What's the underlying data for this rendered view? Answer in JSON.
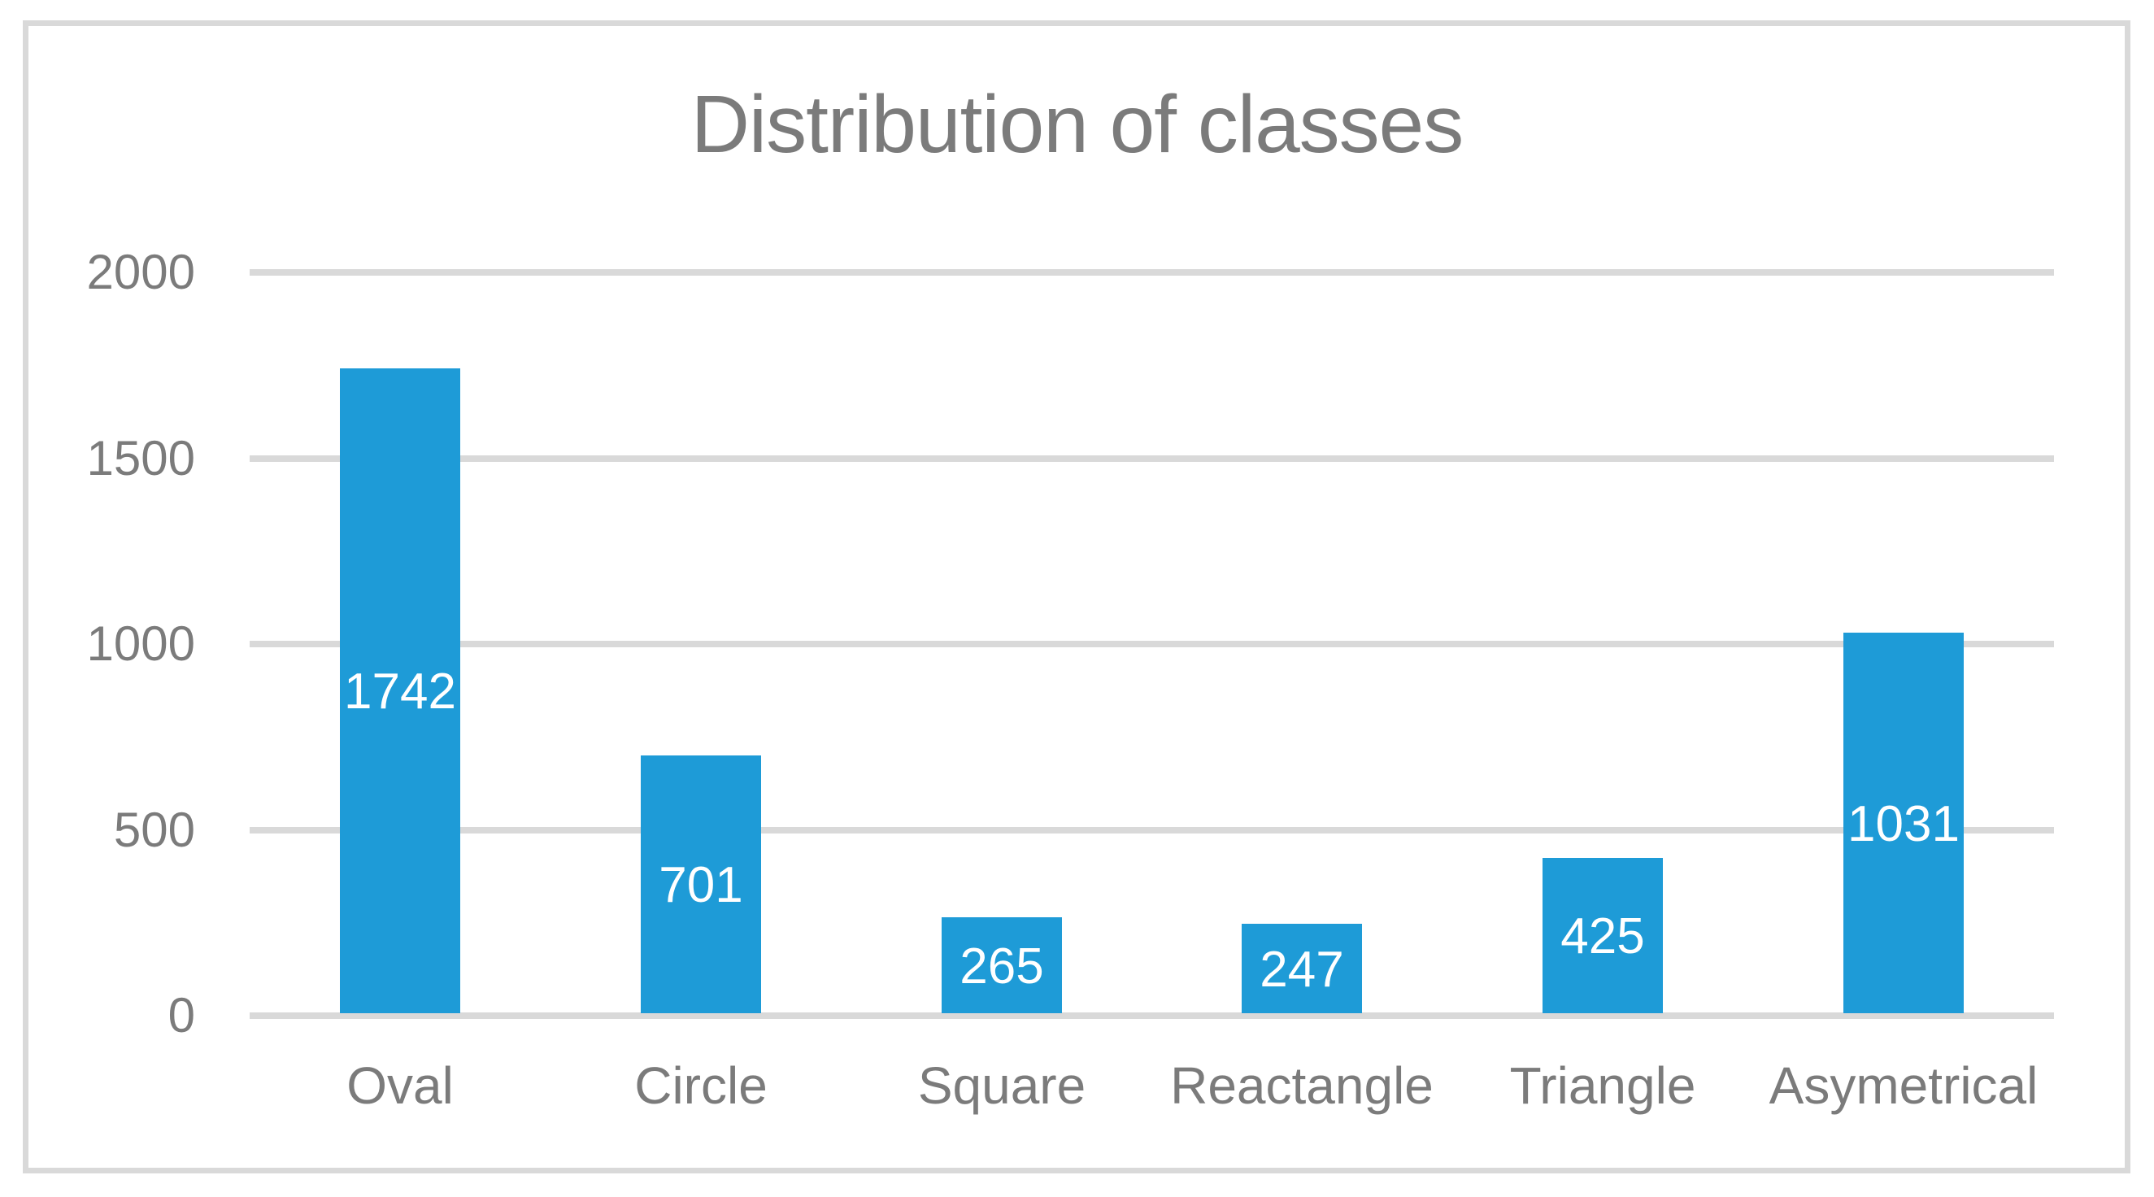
{
  "chart_data": {
    "type": "bar",
    "title": "Distribution of classes",
    "categories": [
      "Oval",
      "Circle",
      "Square",
      "Reactangle",
      "Triangle",
      "Asymetrical"
    ],
    "values": [
      1742,
      701,
      265,
      247,
      425,
      1031
    ],
    "y_ticks": [
      0,
      500,
      1000,
      1500,
      2000
    ],
    "ylim": [
      0,
      2000
    ],
    "xlabel": "",
    "ylabel": "",
    "grid": "horizontal",
    "legend": "none",
    "data_labels_position": "center-inside",
    "bar_color": "#1E9BD7",
    "grid_color": "#D9D9D9",
    "frame_color": "#D9D9D9",
    "text_color": "#7B7B7B",
    "data_label_color": "#FFFFFF"
  }
}
